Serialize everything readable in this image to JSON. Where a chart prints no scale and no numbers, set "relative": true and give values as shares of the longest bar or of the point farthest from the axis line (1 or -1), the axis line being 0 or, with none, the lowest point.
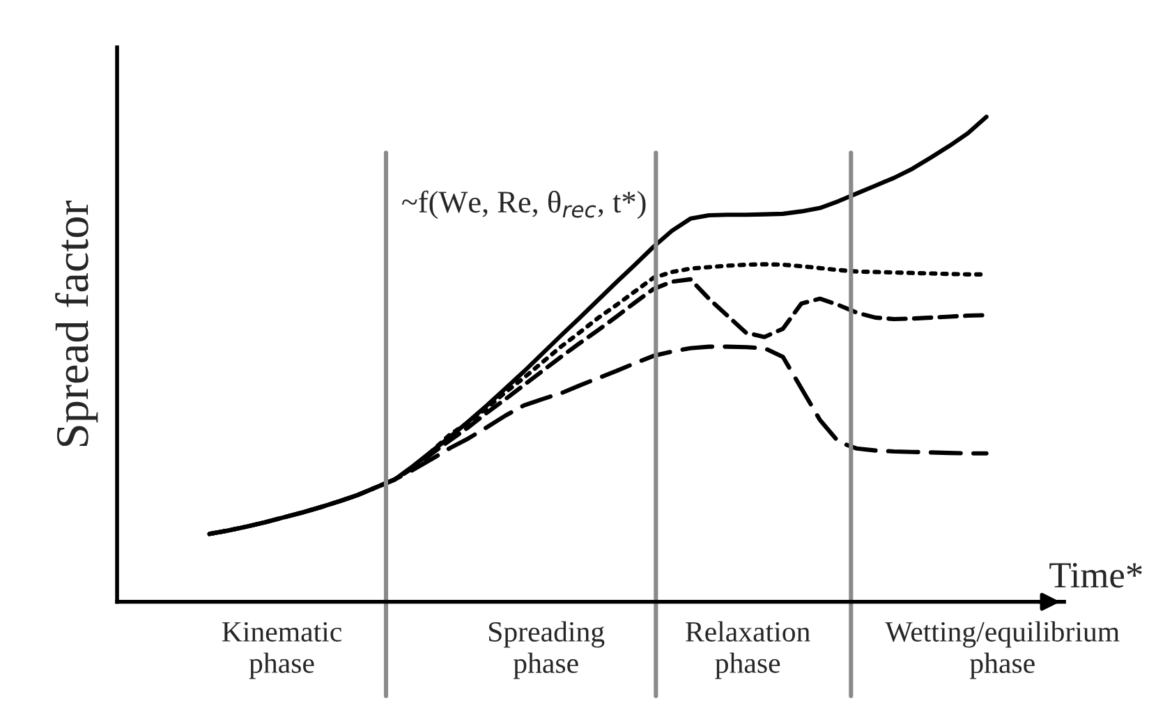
{
  "chart_data": {
    "type": "line",
    "relative": true,
    "ylabel": "Spread factor",
    "xlabel": "Time*",
    "categories": [
      null,
      null,
      null,
      null,
      null,
      null,
      null,
      null,
      null,
      null,
      null,
      null,
      null,
      null,
      null,
      null,
      null,
      null,
      null,
      null,
      null,
      null,
      null,
      null,
      null,
      null,
      null,
      null,
      null,
      null,
      null,
      null,
      null,
      null,
      null,
      null,
      null,
      null,
      null,
      null,
      null,
      null,
      null
    ],
    "series": [
      {
        "color": "#000000",
        "line_style": "solid",
        "values": [
          0.14,
          0.147,
          0.155,
          0.164,
          0.174,
          0.184,
          0.195,
          0.207,
          0.22,
          0.236,
          0.252,
          0.28,
          0.31,
          0.34,
          0.372,
          0.405,
          0.44,
          0.475,
          0.512,
          0.549,
          0.585,
          0.622,
          0.659,
          0.695,
          0.732,
          0.765,
          0.79,
          0.797,
          0.798,
          0.798,
          0.799,
          0.8,
          0.805,
          0.812,
          0.826,
          0.842,
          0.858,
          0.874,
          0.893,
          0.916,
          0.94,
          0.966,
          1.0
        ]
      },
      {
        "color": "#000000",
        "line_style": "dotted",
        "values": [
          0.14,
          0.147,
          0.155,
          0.164,
          0.174,
          0.184,
          0.195,
          0.207,
          0.22,
          0.236,
          0.252,
          0.278,
          0.31,
          0.345,
          0.37,
          0.4,
          0.432,
          0.462,
          0.494,
          0.526,
          0.555,
          0.585,
          0.612,
          0.64,
          0.668,
          0.68,
          0.687,
          0.69,
          0.693,
          0.695,
          0.696,
          0.695,
          0.692,
          0.688,
          0.684,
          0.681,
          0.68,
          0.679,
          0.678,
          0.677,
          0.676,
          0.675,
          0.675
        ]
      },
      {
        "color": "#000000",
        "line_style": "dashed",
        "values": [
          0.14,
          0.147,
          0.155,
          0.164,
          0.174,
          0.184,
          0.195,
          0.207,
          0.22,
          0.236,
          0.252,
          0.276,
          0.305,
          0.333,
          0.36,
          0.39,
          0.418,
          0.447,
          0.476,
          0.505,
          0.533,
          0.56,
          0.588,
          0.617,
          0.645,
          0.66,
          0.665,
          0.625,
          0.59,
          0.555,
          0.546,
          0.563,
          0.615,
          0.625,
          0.612,
          0.596,
          0.586,
          0.583,
          0.584,
          0.586,
          0.588,
          0.59,
          0.591
        ]
      },
      {
        "color": "#000000",
        "line_style": "dashed",
        "values": [
          0.14,
          0.147,
          0.155,
          0.164,
          0.174,
          0.184,
          0.195,
          0.207,
          0.22,
          0.236,
          0.252,
          0.272,
          0.294,
          0.317,
          0.337,
          0.36,
          0.384,
          0.405,
          0.418,
          0.43,
          0.446,
          0.461,
          0.476,
          0.492,
          0.507,
          0.516,
          0.523,
          0.526,
          0.526,
          0.525,
          0.523,
          0.505,
          0.44,
          0.375,
          0.33,
          0.316,
          0.312,
          0.31,
          0.309,
          0.308,
          0.307,
          0.306,
          0.306
        ]
      }
    ],
    "annotations": [
      "~f(We, Re, θ$_{rec}$, t*)",
      "Kinematic\nphase",
      "Spreading\nphase",
      "Relaxation\nphase",
      "Wetting/equilibrium\nphase"
    ]
  }
}
